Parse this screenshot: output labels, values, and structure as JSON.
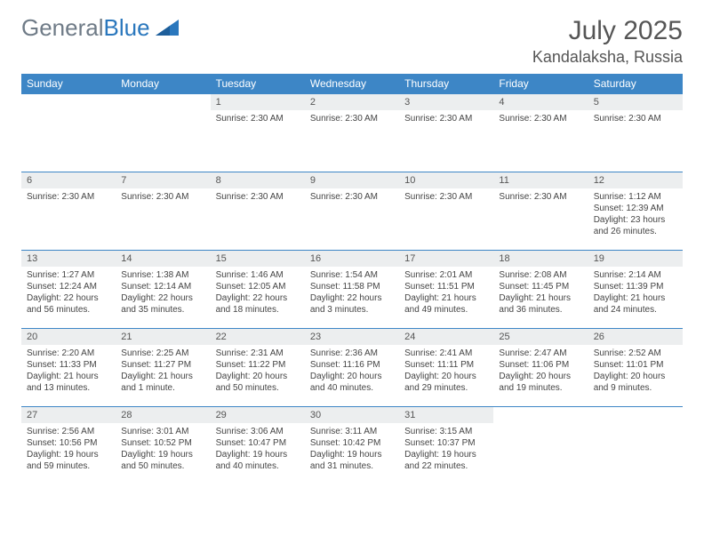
{
  "logo": {
    "part1": "General",
    "part2": "Blue"
  },
  "title": "July 2025",
  "location": "Kandalaksha, Russia",
  "headers": [
    "Sunday",
    "Monday",
    "Tuesday",
    "Wednesday",
    "Thursday",
    "Friday",
    "Saturday"
  ],
  "colors": {
    "header_bg": "#3d86c6",
    "header_text": "#ffffff",
    "daynum_bg": "#eceeef",
    "border": "#3d86c6",
    "logo_gray": "#6f7b87",
    "logo_blue": "#2a77bd"
  },
  "weeks": [
    [
      {
        "n": "",
        "lines": []
      },
      {
        "n": "",
        "lines": []
      },
      {
        "n": "1",
        "lines": [
          "Sunrise: 2:30 AM"
        ]
      },
      {
        "n": "2",
        "lines": [
          "Sunrise: 2:30 AM"
        ]
      },
      {
        "n": "3",
        "lines": [
          "Sunrise: 2:30 AM"
        ]
      },
      {
        "n": "4",
        "lines": [
          "Sunrise: 2:30 AM"
        ]
      },
      {
        "n": "5",
        "lines": [
          "Sunrise: 2:30 AM"
        ]
      }
    ],
    [
      {
        "n": "6",
        "lines": [
          "Sunrise: 2:30 AM"
        ]
      },
      {
        "n": "7",
        "lines": [
          "Sunrise: 2:30 AM"
        ]
      },
      {
        "n": "8",
        "lines": [
          "Sunrise: 2:30 AM"
        ]
      },
      {
        "n": "9",
        "lines": [
          "Sunrise: 2:30 AM"
        ]
      },
      {
        "n": "10",
        "lines": [
          "Sunrise: 2:30 AM"
        ]
      },
      {
        "n": "11",
        "lines": [
          "Sunrise: 2:30 AM"
        ]
      },
      {
        "n": "12",
        "lines": [
          "Sunrise: 1:12 AM",
          "Sunset: 12:39 AM",
          "Daylight: 23 hours and 26 minutes."
        ]
      }
    ],
    [
      {
        "n": "13",
        "lines": [
          "Sunrise: 1:27 AM",
          "Sunset: 12:24 AM",
          "Daylight: 22 hours and 56 minutes."
        ]
      },
      {
        "n": "14",
        "lines": [
          "Sunrise: 1:38 AM",
          "Sunset: 12:14 AM",
          "Daylight: 22 hours and 35 minutes."
        ]
      },
      {
        "n": "15",
        "lines": [
          "Sunrise: 1:46 AM",
          "Sunset: 12:05 AM",
          "Daylight: 22 hours and 18 minutes."
        ]
      },
      {
        "n": "16",
        "lines": [
          "Sunrise: 1:54 AM",
          "Sunset: 11:58 PM",
          "Daylight: 22 hours and 3 minutes."
        ]
      },
      {
        "n": "17",
        "lines": [
          "Sunrise: 2:01 AM",
          "Sunset: 11:51 PM",
          "Daylight: 21 hours and 49 minutes."
        ]
      },
      {
        "n": "18",
        "lines": [
          "Sunrise: 2:08 AM",
          "Sunset: 11:45 PM",
          "Daylight: 21 hours and 36 minutes."
        ]
      },
      {
        "n": "19",
        "lines": [
          "Sunrise: 2:14 AM",
          "Sunset: 11:39 PM",
          "Daylight: 21 hours and 24 minutes."
        ]
      }
    ],
    [
      {
        "n": "20",
        "lines": [
          "Sunrise: 2:20 AM",
          "Sunset: 11:33 PM",
          "Daylight: 21 hours and 13 minutes."
        ]
      },
      {
        "n": "21",
        "lines": [
          "Sunrise: 2:25 AM",
          "Sunset: 11:27 PM",
          "Daylight: 21 hours and 1 minute."
        ]
      },
      {
        "n": "22",
        "lines": [
          "Sunrise: 2:31 AM",
          "Sunset: 11:22 PM",
          "Daylight: 20 hours and 50 minutes."
        ]
      },
      {
        "n": "23",
        "lines": [
          "Sunrise: 2:36 AM",
          "Sunset: 11:16 PM",
          "Daylight: 20 hours and 40 minutes."
        ]
      },
      {
        "n": "24",
        "lines": [
          "Sunrise: 2:41 AM",
          "Sunset: 11:11 PM",
          "Daylight: 20 hours and 29 minutes."
        ]
      },
      {
        "n": "25",
        "lines": [
          "Sunrise: 2:47 AM",
          "Sunset: 11:06 PM",
          "Daylight: 20 hours and 19 minutes."
        ]
      },
      {
        "n": "26",
        "lines": [
          "Sunrise: 2:52 AM",
          "Sunset: 11:01 PM",
          "Daylight: 20 hours and 9 minutes."
        ]
      }
    ],
    [
      {
        "n": "27",
        "lines": [
          "Sunrise: 2:56 AM",
          "Sunset: 10:56 PM",
          "Daylight: 19 hours and 59 minutes."
        ]
      },
      {
        "n": "28",
        "lines": [
          "Sunrise: 3:01 AM",
          "Sunset: 10:52 PM",
          "Daylight: 19 hours and 50 minutes."
        ]
      },
      {
        "n": "29",
        "lines": [
          "Sunrise: 3:06 AM",
          "Sunset: 10:47 PM",
          "Daylight: 19 hours and 40 minutes."
        ]
      },
      {
        "n": "30",
        "lines": [
          "Sunrise: 3:11 AM",
          "Sunset: 10:42 PM",
          "Daylight: 19 hours and 31 minutes."
        ]
      },
      {
        "n": "31",
        "lines": [
          "Sunrise: 3:15 AM",
          "Sunset: 10:37 PM",
          "Daylight: 19 hours and 22 minutes."
        ]
      },
      {
        "n": "",
        "lines": []
      },
      {
        "n": "",
        "lines": []
      }
    ]
  ]
}
